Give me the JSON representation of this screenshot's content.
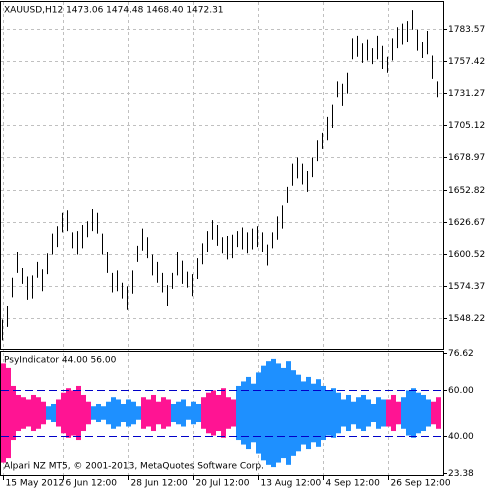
{
  "chart_data": [
    {
      "type": "range",
      "title": "XAUUSD,H12  1473.06 1474.48 1468.40 1472.31",
      "color": "#000000",
      "grid": true,
      "categories": [
        "15 May 2012",
        null,
        null,
        null,
        null,
        null,
        null,
        null,
        null,
        null,
        null,
        null,
        "6 Jun 12:00",
        null,
        null,
        null,
        null,
        null,
        null,
        null,
        null,
        null,
        null,
        null,
        null,
        "28 Jun 12:00",
        null,
        null,
        null,
        null,
        null,
        null,
        null,
        null,
        null,
        null,
        null,
        null,
        "20 Jul 12:00",
        null,
        null,
        null,
        null,
        null,
        null,
        null,
        null,
        null,
        null,
        null,
        null,
        "13 Aug 12:00",
        null,
        null,
        null,
        null,
        null,
        null,
        null,
        null,
        null,
        null,
        null,
        null,
        "4 Sep 12:00",
        null,
        null,
        null,
        null,
        null,
        null,
        null,
        null,
        null,
        null,
        null,
        null,
        "26 Sep 12:00",
        null,
        null,
        null,
        null,
        null,
        null,
        null,
        null,
        null,
        null
      ],
      "high": [
        1547,
        1558,
        1581,
        1602,
        1589,
        1582,
        1583,
        1594,
        1588,
        1601,
        1617,
        1623,
        1634,
        1636,
        1618,
        1619,
        1624,
        1627,
        1637,
        1634,
        1617,
        1602,
        1585,
        1587,
        1577,
        1574,
        1587,
        1607,
        1621,
        1614,
        1600,
        1594,
        1585,
        1575,
        1585,
        1602,
        1595,
        1586,
        1584,
        1597,
        1609,
        1619,
        1628,
        1624,
        1614,
        1615,
        1616,
        1619,
        1622,
        1618,
        1621,
        1623,
        1618,
        1608,
        1618,
        1631,
        1640,
        1655,
        1674,
        1679,
        1674,
        1668,
        1679,
        1693,
        1699,
        1712,
        1722,
        1741,
        1739,
        1748,
        1776,
        1778,
        1772,
        1775,
        1768,
        1778,
        1770,
        1761,
        1776,
        1785,
        1788,
        1790,
        1799,
        1783,
        1773,
        1782,
        1762,
        1741
      ],
      "low": [
        1530,
        1541,
        1565,
        1585,
        1576,
        1563,
        1564,
        1581,
        1570,
        1584,
        1600,
        1606,
        1618,
        1619,
        1605,
        1600,
        1605,
        1614,
        1619,
        1617,
        1600,
        1585,
        1569,
        1570,
        1564,
        1555,
        1568,
        1594,
        1603,
        1597,
        1583,
        1577,
        1569,
        1558,
        1572,
        1583,
        1576,
        1573,
        1566,
        1580,
        1592,
        1602,
        1612,
        1607,
        1601,
        1596,
        1597,
        1606,
        1604,
        1601,
        1604,
        1606,
        1602,
        1591,
        1605,
        1612,
        1621,
        1642,
        1656,
        1662,
        1657,
        1651,
        1663,
        1676,
        1686,
        1693,
        1703,
        1728,
        1721,
        1731,
        1759,
        1761,
        1756,
        1758,
        1755,
        1759,
        1751,
        1748,
        1758,
        1768,
        1771,
        1773,
        1783,
        1766,
        1760,
        1763,
        1743,
        1728
      ],
      "ylim": [
        1523,
        1805.6
      ],
      "yticks": [
        1783.57,
        1757.42,
        1731.27,
        1705.12,
        1678.97,
        1652.82,
        1626.67,
        1600.52,
        1574.37,
        1548.22
      ]
    },
    {
      "type": "histogram",
      "title": "PsyIndicator 44.00 56.00",
      "grid": true,
      "segments": [
        {
          "color": "#ff1493",
          "values": [
            72,
            70,
            62,
            58,
            57,
            56,
            58,
            57,
            55
          ]
        },
        {
          "color": "#1e90ff",
          "values": [
            53,
            54
          ]
        },
        {
          "color": "#ff1493",
          "values": [
            56,
            59,
            61,
            60,
            62,
            58,
            55
          ]
        },
        {
          "color": "#1e90ff",
          "values": [
            53,
            54,
            53,
            55,
            57,
            56,
            54,
            56,
            55,
            53
          ]
        },
        {
          "color": "#ff1493",
          "values": [
            57,
            56,
            58,
            55,
            57,
            56
          ]
        },
        {
          "color": "#1e90ff",
          "values": [
            54,
            55,
            56,
            53,
            55,
            54
          ]
        },
        {
          "color": "#ff1493",
          "values": [
            57,
            59,
            60,
            58,
            61,
            57,
            56
          ]
        },
        {
          "color": "#1e90ff",
          "values": [
            62,
            64,
            66,
            63,
            68,
            71,
            73,
            74,
            72,
            70,
            73,
            69,
            67,
            64,
            66,
            63,
            65,
            62,
            60,
            61,
            59,
            56,
            58,
            55,
            57,
            58,
            56,
            54,
            57,
            56
          ]
        },
        {
          "color": "#ff1493",
          "values": [
            56,
            58,
            55
          ]
        },
        {
          "color": "#1e90ff",
          "values": [
            57,
            60,
            61,
            59,
            58,
            56
          ]
        },
        {
          "color": "#ff1493",
          "values": [
            55,
            57
          ]
        }
      ],
      "levels": [
        60,
        40
      ],
      "level_color": "#0000c8",
      "ylim": [
        23.38,
        76.62
      ],
      "yticks": [
        76.62,
        {
          "value": 60,
          "label": "60.00"
        },
        {
          "value": 40,
          "label": "40.00"
        },
        23.38
      ]
    }
  ],
  "footer": "Alpari NZ MT5, © 2001-2013, MetaQuotes Software Corp."
}
